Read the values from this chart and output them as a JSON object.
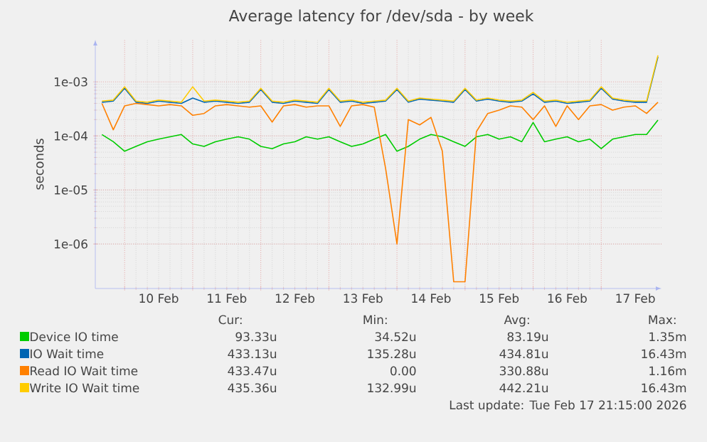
{
  "chart_data": {
    "type": "line",
    "title": "Average latency for /dev/sda - by week",
    "ylabel": "seconds",
    "log": true,
    "grid": true,
    "legend": "bottom",
    "xlim": [
      "2026-02-09T13:40",
      "2026-02-17T21:15"
    ],
    "xticks": [
      {
        "value": "2026-02-10T00:00",
        "label": null
      },
      {
        "value": "2026-02-10T12:00",
        "label": "10 Feb"
      },
      {
        "value": "2026-02-11T00:00",
        "label": null
      },
      {
        "value": "2026-02-11T12:00",
        "label": "11 Feb"
      },
      {
        "value": "2026-02-12T00:00",
        "label": null
      },
      {
        "value": "2026-02-12T12:00",
        "label": "12 Feb"
      },
      {
        "value": "2026-02-13T00:00",
        "label": null
      },
      {
        "value": "2026-02-13T12:00",
        "label": "13 Feb"
      },
      {
        "value": "2026-02-14T00:00",
        "label": null
      },
      {
        "value": "2026-02-14T12:00",
        "label": "14 Feb"
      },
      {
        "value": "2026-02-15T00:00",
        "label": null
      },
      {
        "value": "2026-02-15T12:00",
        "label": "15 Feb"
      },
      {
        "value": "2026-02-16T00:00",
        "label": null
      },
      {
        "value": "2026-02-16T12:00",
        "label": "16 Feb"
      },
      {
        "value": "2026-02-17T00:00",
        "label": null
      },
      {
        "value": "2026-02-17T12:00",
        "label": "17 Feb"
      }
    ],
    "ylim": [
      1.5e-07,
      0.006
    ],
    "yticks": [
      {
        "value": 1e-06,
        "label": "1e-06"
      },
      {
        "value": 1e-05,
        "label": "1e-05"
      },
      {
        "value": 0.0001,
        "label": "1e-04"
      },
      {
        "value": 0.001,
        "label": "1e-03"
      }
    ],
    "x": [
      "2026-02-09T16:00",
      "2026-02-09T20:00",
      "2026-02-10T00:00",
      "2026-02-10T04:00",
      "2026-02-10T08:00",
      "2026-02-10T12:00",
      "2026-02-10T16:00",
      "2026-02-10T20:00",
      "2026-02-11T00:00",
      "2026-02-11T04:00",
      "2026-02-11T08:00",
      "2026-02-11T12:00",
      "2026-02-11T16:00",
      "2026-02-11T20:00",
      "2026-02-12T00:00",
      "2026-02-12T04:00",
      "2026-02-12T08:00",
      "2026-02-12T12:00",
      "2026-02-12T16:00",
      "2026-02-12T20:00",
      "2026-02-13T00:00",
      "2026-02-13T04:00",
      "2026-02-13T08:00",
      "2026-02-13T12:00",
      "2026-02-13T16:00",
      "2026-02-13T20:00",
      "2026-02-14T00:00",
      "2026-02-14T04:00",
      "2026-02-14T08:00",
      "2026-02-14T12:00",
      "2026-02-14T16:00",
      "2026-02-14T20:00",
      "2026-02-15T00:00",
      "2026-02-15T04:00",
      "2026-02-15T08:00",
      "2026-02-15T12:00",
      "2026-02-15T16:00",
      "2026-02-15T20:00",
      "2026-02-16T00:00",
      "2026-02-16T04:00",
      "2026-02-16T08:00",
      "2026-02-16T12:00",
      "2026-02-16T16:00",
      "2026-02-16T20:00",
      "2026-02-17T00:00",
      "2026-02-17T04:00",
      "2026-02-17T08:00",
      "2026-02-17T12:00",
      "2026-02-17T16:00",
      "2026-02-17T20:00"
    ],
    "series": [
      {
        "name": "Device IO time",
        "color": "#00cc00",
        "values": [
          0.000106,
          7.8e-05,
          5.2e-05,
          6.4e-05,
          7.8e-05,
          8.7e-05,
          9.6e-05,
          0.000106,
          7.1e-05,
          6.4e-05,
          7.8e-05,
          8.7e-05,
          9.6e-05,
          8.7e-05,
          6.4e-05,
          5.8e-05,
          7.1e-05,
          7.8e-05,
          9.6e-05,
          8.7e-05,
          9.6e-05,
          7.8e-05,
          6.4e-05,
          7.1e-05,
          8.7e-05,
          0.000106,
          5.2e-05,
          6.4e-05,
          8.7e-05,
          0.000106,
          9.6e-05,
          7.8e-05,
          6.4e-05,
          9.6e-05,
          0.000106,
          8.7e-05,
          9.6e-05,
          7.8e-05,
          0.000177,
          7.8e-05,
          8.7e-05,
          9.6e-05,
          7.8e-05,
          8.7e-05,
          5.8e-05,
          8.7e-05,
          9.6e-05,
          0.000106,
          0.000106,
          0.000196
        ]
      },
      {
        "name": "IO Wait time",
        "color": "#0066b3",
        "values": [
          0.00042,
          0.00044,
          0.00076,
          0.00042,
          0.0004,
          0.00044,
          0.00042,
          0.0004,
          0.0005,
          0.00042,
          0.00044,
          0.00042,
          0.0004,
          0.00042,
          0.00072,
          0.00042,
          0.0004,
          0.00044,
          0.00042,
          0.0004,
          0.00072,
          0.00042,
          0.00044,
          0.0004,
          0.00042,
          0.00044,
          0.00072,
          0.00042,
          0.00048,
          0.00046,
          0.00044,
          0.00042,
          0.00072,
          0.00044,
          0.00048,
          0.00044,
          0.00042,
          0.00044,
          0.0006,
          0.00042,
          0.00044,
          0.0004,
          0.00042,
          0.00044,
          0.00076,
          0.00048,
          0.00044,
          0.00042,
          0.00042,
          0.0029
        ]
      },
      {
        "name": "Read IO Wait time",
        "color": "#ff8000",
        "values": [
          0.0004,
          0.00013,
          0.00036,
          0.0004,
          0.00038,
          0.00036,
          0.00038,
          0.00036,
          0.00024,
          0.00026,
          0.00036,
          0.00038,
          0.00036,
          0.00034,
          0.00036,
          0.00018,
          0.00036,
          0.00038,
          0.00034,
          0.00036,
          0.00036,
          0.00015,
          0.00036,
          0.00038,
          0.00034,
          2.5e-05,
          1e-06,
          0.0002,
          0.00016,
          0.00022,
          5.2e-05,
          2e-07,
          2e-07,
          0.00012,
          0.00026,
          0.0003,
          0.00036,
          0.00034,
          0.0002,
          0.00036,
          0.00015,
          0.00036,
          0.0002,
          0.00036,
          0.00038,
          0.0003,
          0.00034,
          0.00036,
          0.00026,
          0.00042
        ]
      },
      {
        "name": "Write IO Wait time",
        "color": "#ffcc00",
        "values": [
          0.00044,
          0.00046,
          0.00081,
          0.00044,
          0.00042,
          0.00046,
          0.00044,
          0.00042,
          0.00081,
          0.00044,
          0.00046,
          0.00044,
          0.00042,
          0.00044,
          0.00076,
          0.00044,
          0.00042,
          0.00046,
          0.00044,
          0.00042,
          0.00076,
          0.00044,
          0.00046,
          0.00042,
          0.00044,
          0.00046,
          0.00076,
          0.00044,
          0.0005,
          0.00048,
          0.00046,
          0.00044,
          0.00076,
          0.00046,
          0.0005,
          0.00046,
          0.00044,
          0.00046,
          0.00064,
          0.00044,
          0.00046,
          0.00042,
          0.00044,
          0.00046,
          0.00081,
          0.0005,
          0.00046,
          0.00044,
          0.00044,
          0.0031
        ]
      }
    ],
    "annotations": [
      "Cur:",
      "Min:",
      "Avg:",
      "Max:",
      "93.33u",
      "34.52u",
      "83.19u",
      "1.35m",
      "433.13u",
      "135.28u",
      "434.81u",
      "16.43m",
      "433.47u",
      "0.00",
      "330.88u",
      "1.16m",
      "435.36u",
      "132.99u",
      "442.21u",
      "16.43m",
      "Last update: Tue Feb 17 21:15:00 2026"
    ]
  }
}
